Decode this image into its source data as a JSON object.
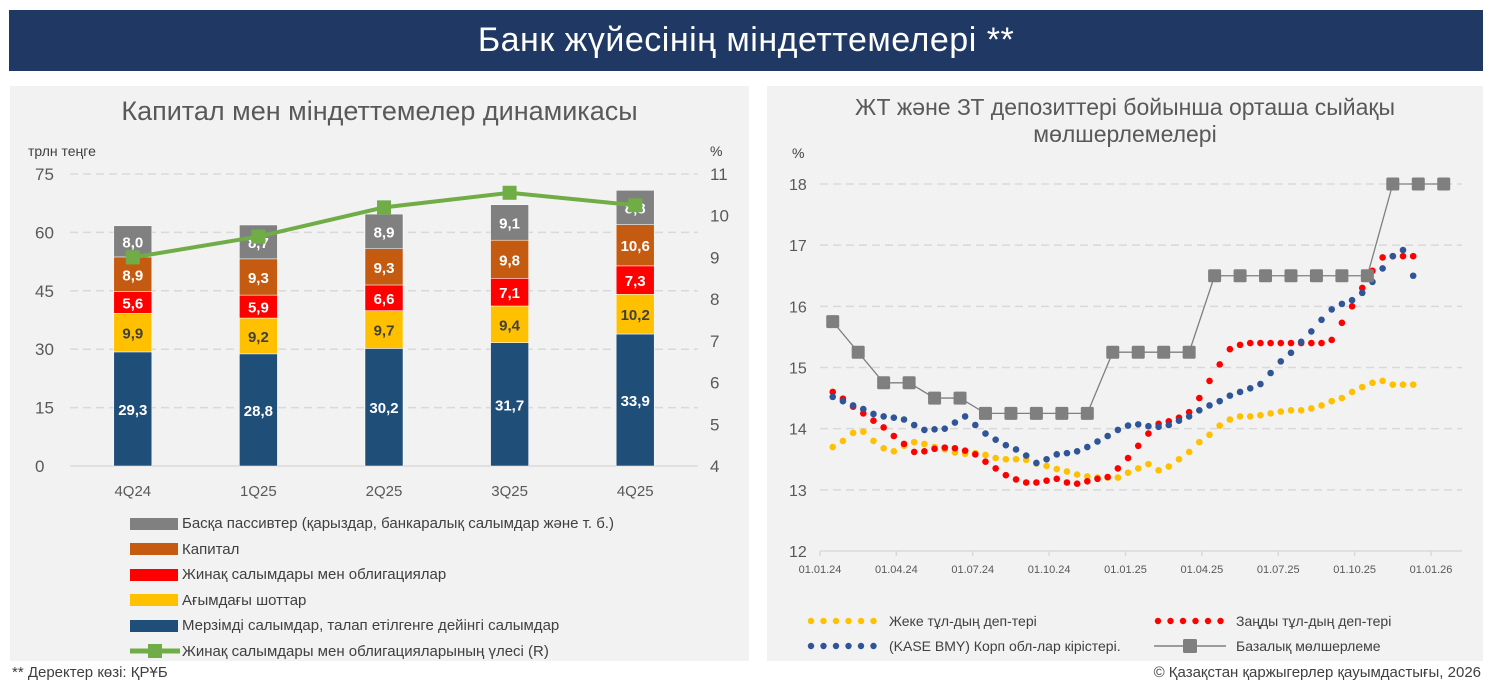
{
  "header": {
    "title": "Банк жүйесінің міндеттемелері **"
  },
  "footer": {
    "source": "**  Деректер көзі: ҚРҰБ",
    "copyright": "© Қазақстан қаржыгерлер қауымдастығы, 2026"
  },
  "chart_data": [
    {
      "type": "bar",
      "stacked": true,
      "title": "Капитал мен міндеттемелер динамикасы",
      "ylabel": "трлн теңге",
      "y2label": "%",
      "ylim": [
        0,
        75
      ],
      "yticks": [
        0,
        15,
        30,
        45,
        60,
        75
      ],
      "y2lim": [
        4,
        11
      ],
      "y2ticks": [
        4,
        5,
        6,
        7,
        8,
        9,
        10,
        11
      ],
      "grid": true,
      "categories": [
        "4Q24",
        "1Q25",
        "2Q25",
        "3Q25",
        "4Q25"
      ],
      "series": [
        {
          "name": "Мерзімді салымдар, талап етілгенге дейінгі салымдар",
          "color": "#1f4e79",
          "label_color": "#ffffff",
          "values": [
            29.3,
            28.8,
            30.2,
            31.7,
            33.9
          ],
          "labels": [
            "29,3",
            "28,8",
            "30,2",
            "31,7",
            "33,9"
          ]
        },
        {
          "name": "Ағымдағы шоттар",
          "color": "#ffc000",
          "label_color": "#404040",
          "values": [
            9.9,
            9.2,
            9.7,
            9.4,
            10.2
          ],
          "labels": [
            "9,9",
            "9,2",
            "9,7",
            "9,4",
            "10,2"
          ]
        },
        {
          "name": "Жинақ салымдары мен облигациялар",
          "color": "#ff0000",
          "label_color": "#ffffff",
          "values": [
            5.6,
            5.9,
            6.6,
            7.1,
            7.3
          ],
          "labels": [
            "5,6",
            "5,9",
            "6,6",
            "7,1",
            "7,3"
          ]
        },
        {
          "name": "Капитал",
          "color": "#c55a11",
          "label_color": "#ffffff",
          "values": [
            8.9,
            9.3,
            9.3,
            9.8,
            10.6
          ],
          "labels": [
            "8,9",
            "9,3",
            "9,3",
            "9,8",
            "10,6"
          ]
        },
        {
          "name": "Басқа пассивтер (қарыздар, банкаралық салымдар және т. б.)",
          "color": "#808080",
          "label_color": "#ffffff",
          "values": [
            8.0,
            8.7,
            8.9,
            9.1,
            8.8
          ],
          "labels": [
            "8,0",
            "8,7",
            "8,9",
            "9,1",
            "8,8"
          ]
        }
      ],
      "line_series": {
        "name": "Жинақ салымдары мен облигацияларының үлесі (R)",
        "color": "#70ad47",
        "axis": "right",
        "values": [
          9.0,
          9.5,
          10.2,
          10.55,
          10.25
        ]
      },
      "legend_order": [
        4,
        3,
        2,
        1,
        0
      ],
      "legend_placement": "bottom"
    },
    {
      "type": "line",
      "title": "ЖТ және ЗТ депозиттері бойынша орташа сыйақы мөлшерлемелері",
      "ylabel": "%",
      "ylim": [
        12,
        18
      ],
      "yticks": [
        12,
        13,
        14,
        15,
        16,
        17,
        18
      ],
      "grid": true,
      "xlim": [
        "01.01.24",
        "01.01.26"
      ],
      "xticks": [
        "01.01.24",
        "01.04.24",
        "01.07.24",
        "01.10.24",
        "01.01.25",
        "01.04.25",
        "01.07.25",
        "01.10.25",
        "01.01.26"
      ],
      "x_unit": "months since 01.01.24",
      "series": [
        {
          "name": "Жеке тұл-дың деп-тері",
          "color": "#ffc000",
          "style": "dotted",
          "x": [
            0.5,
            0.9,
            1.3,
            1.7,
            2.1,
            2.5,
            2.9,
            3.3,
            3.7,
            4.1,
            4.5,
            4.9,
            5.3,
            5.7,
            6.1,
            6.5,
            6.9,
            7.3,
            7.7,
            8.1,
            8.5,
            8.9,
            9.3,
            9.7,
            10.1,
            10.5,
            10.9,
            11.3,
            11.7,
            12.1,
            12.5,
            12.9,
            13.3,
            13.7,
            14.1,
            14.5,
            14.9,
            15.3,
            15.7,
            16.1,
            16.5,
            16.9,
            17.3,
            17.7,
            18.1,
            18.5,
            18.9,
            19.3,
            19.7,
            20.1,
            20.5,
            20.9,
            21.3,
            21.7,
            22.1,
            22.5,
            22.9,
            23.3
          ],
          "values": [
            13.7,
            13.8,
            13.93,
            13.95,
            13.8,
            13.68,
            13.63,
            13.72,
            13.78,
            13.75,
            13.7,
            13.66,
            13.61,
            13.59,
            13.6,
            13.57,
            13.52,
            13.5,
            13.5,
            13.49,
            13.43,
            13.39,
            13.34,
            13.3,
            13.25,
            13.22,
            13.2,
            13.2,
            13.2,
            13.28,
            13.35,
            13.42,
            13.32,
            13.38,
            13.5,
            13.62,
            13.78,
            13.9,
            14.05,
            14.15,
            14.2,
            14.2,
            14.22,
            14.25,
            14.28,
            14.3,
            14.3,
            14.33,
            14.38,
            14.45,
            14.5,
            14.6,
            14.68,
            14.75,
            14.78,
            14.72,
            14.72,
            14.72
          ]
        },
        {
          "name": "Заңды тұл-дың деп-тері",
          "color": "#ff0000",
          "style": "dotted",
          "x": [
            0.5,
            0.9,
            1.3,
            1.7,
            2.1,
            2.5,
            2.9,
            3.3,
            3.7,
            4.1,
            4.5,
            4.9,
            5.3,
            5.7,
            6.1,
            6.5,
            6.9,
            7.3,
            7.7,
            8.1,
            8.5,
            8.9,
            9.3,
            9.7,
            10.1,
            10.5,
            10.9,
            11.3,
            11.7,
            12.1,
            12.5,
            12.9,
            13.3,
            13.7,
            14.1,
            14.5,
            14.9,
            15.3,
            15.7,
            16.1,
            16.5,
            16.9,
            17.3,
            17.7,
            18.1,
            18.5,
            18.9,
            19.3,
            19.7,
            20.1,
            20.5,
            20.9,
            21.3,
            21.7,
            22.1,
            22.5,
            22.9,
            23.3
          ],
          "values": [
            14.6,
            14.49,
            14.36,
            14.25,
            14.13,
            14.02,
            13.88,
            13.75,
            13.62,
            13.63,
            13.67,
            13.69,
            13.68,
            13.64,
            13.58,
            13.46,
            13.35,
            13.24,
            13.17,
            13.12,
            13.12,
            13.15,
            13.18,
            13.12,
            13.1,
            13.14,
            13.18,
            13.21,
            13.35,
            13.52,
            13.72,
            13.92,
            14.08,
            14.12,
            14.18,
            14.27,
            14.5,
            14.78,
            15.05,
            15.3,
            15.37,
            15.4,
            15.4,
            15.4,
            15.4,
            15.4,
            15.4,
            15.4,
            15.4,
            15.45,
            15.73,
            16.0,
            16.3,
            16.58,
            16.8,
            16.82,
            16.82,
            16.82
          ]
        },
        {
          "name": "(KASE BMY) Корп обл-лар кірістері.",
          "color": "#2f5597",
          "style": "dotted",
          "x": [
            0.5,
            0.9,
            1.3,
            1.7,
            2.1,
            2.5,
            2.9,
            3.3,
            3.7,
            4.1,
            4.5,
            4.9,
            5.3,
            5.7,
            6.1,
            6.5,
            6.9,
            7.3,
            7.7,
            8.1,
            8.5,
            8.9,
            9.3,
            9.7,
            10.1,
            10.5,
            10.9,
            11.3,
            11.7,
            12.1,
            12.5,
            12.9,
            13.3,
            13.7,
            14.1,
            14.5,
            14.9,
            15.3,
            15.7,
            16.1,
            16.5,
            16.9,
            17.3,
            17.7,
            18.1,
            18.5,
            18.9,
            19.3,
            19.7,
            20.1,
            20.5,
            20.9,
            21.3,
            21.7,
            22.1,
            22.5,
            22.9,
            23.3
          ],
          "values": [
            14.52,
            14.45,
            14.38,
            14.32,
            14.24,
            14.2,
            14.18,
            14.15,
            14.06,
            13.98,
            13.99,
            14.0,
            14.1,
            14.2,
            14.06,
            13.92,
            13.82,
            13.73,
            13.66,
            13.56,
            13.44,
            13.5,
            13.58,
            13.6,
            13.63,
            13.7,
            13.79,
            13.88,
            13.98,
            14.05,
            14.07,
            14.04,
            14.03,
            14.06,
            14.13,
            14.2,
            14.3,
            14.38,
            14.45,
            14.54,
            14.6,
            14.66,
            14.73,
            14.91,
            15.1,
            15.24,
            15.42,
            15.59,
            15.78,
            15.95,
            16.04,
            16.1,
            16.22,
            16.4,
            16.62,
            16.82,
            16.92,
            16.5
          ]
        },
        {
          "name": "Базалық мөлшерлеме",
          "color": "#7f7f7f",
          "style": "line-square-markers",
          "x": [
            0.5,
            1.5,
            2.5,
            3.5,
            4.5,
            5.5,
            6.5,
            7.5,
            8.5,
            9.5,
            10.5,
            11.5,
            12.5,
            13.5,
            14.5,
            15.5,
            16.5,
            17.5,
            18.5,
            19.5,
            20.5,
            21.5,
            22.5,
            23.5,
            24.5
          ],
          "values": [
            15.75,
            15.25,
            14.75,
            14.75,
            14.5,
            14.5,
            14.25,
            14.25,
            14.25,
            14.25,
            14.25,
            15.25,
            15.25,
            15.25,
            15.25,
            16.5,
            16.5,
            16.5,
            16.5,
            16.5,
            16.5,
            16.5,
            18.0,
            18.0,
            18.0
          ]
        }
      ],
      "legend_placement": "bottom"
    }
  ]
}
